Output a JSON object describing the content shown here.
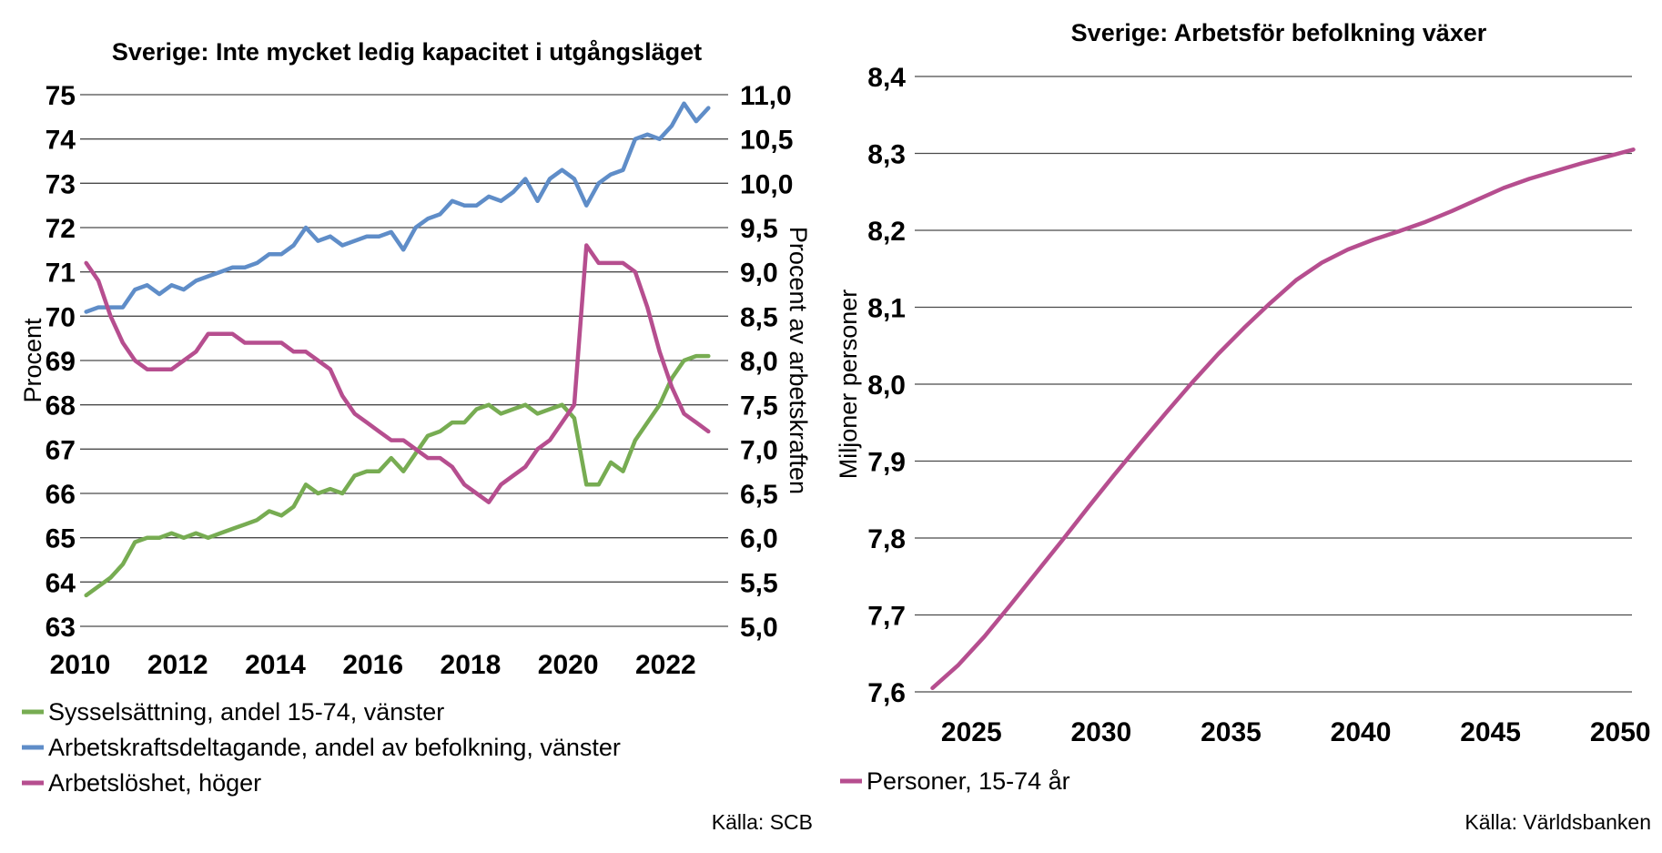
{
  "charts": [
    {
      "type": "line",
      "title": "Sverige: Inte mycket ledig kapacitet i utgångsläget",
      "ylabel": "Procent",
      "y2label": "Procent av arbetskraften",
      "xlabel": "",
      "xlim": [
        2010,
        2023
      ],
      "ylim": [
        63,
        75
      ],
      "y2lim": [
        5.0,
        11.0
      ],
      "x_ticks": [
        "2010",
        "2012",
        "2014",
        "2016",
        "2018",
        "2020",
        "2022"
      ],
      "y_ticks": [
        "63",
        "64",
        "65",
        "66",
        "67",
        "68",
        "69",
        "70",
        "71",
        "72",
        "73",
        "74",
        "75"
      ],
      "y2_ticks": [
        "5,0",
        "5,5",
        "6,0",
        "6,5",
        "7,0",
        "7,5",
        "8,0",
        "8,5",
        "9,0",
        "9,5",
        "10,0",
        "10,5",
        "11,0"
      ],
      "grid": true,
      "legend_position": "bottom",
      "source": "Källa: SCB",
      "series": [
        {
          "name": "Sysselsättning, andel 15-74, vänster",
          "axis": "left",
          "color": "#77AC52",
          "x": [
            2010.125,
            2010.375,
            2010.625,
            2010.875,
            2011.125,
            2011.375,
            2011.625,
            2011.875,
            2012.125,
            2012.375,
            2012.625,
            2012.875,
            2013.125,
            2013.375,
            2013.625,
            2013.875,
            2014.125,
            2014.375,
            2014.625,
            2014.875,
            2015.125,
            2015.375,
            2015.625,
            2015.875,
            2016.125,
            2016.375,
            2016.625,
            2016.875,
            2017.125,
            2017.375,
            2017.625,
            2017.875,
            2018.125,
            2018.375,
            2018.625,
            2018.875,
            2019.125,
            2019.375,
            2019.625,
            2019.875,
            2020.125,
            2020.375,
            2020.625,
            2020.875,
            2021.125,
            2021.375,
            2021.625,
            2021.875,
            2022.125,
            2022.375,
            2022.625,
            2022.875
          ],
          "values": [
            63.7,
            63.9,
            64.1,
            64.4,
            64.9,
            65.0,
            65.0,
            65.1,
            65.0,
            65.1,
            65.0,
            65.1,
            65.2,
            65.3,
            65.4,
            65.6,
            65.5,
            65.7,
            66.2,
            66.0,
            66.1,
            66.0,
            66.4,
            66.5,
            66.5,
            66.8,
            66.5,
            66.9,
            67.3,
            67.4,
            67.6,
            67.6,
            67.9,
            68.0,
            67.8,
            67.9,
            68.0,
            67.8,
            67.9,
            68.0,
            67.7,
            66.2,
            66.2,
            66.7,
            66.5,
            67.2,
            67.6,
            68.0,
            68.6,
            69.0,
            69.1,
            69.1
          ]
        },
        {
          "name": "Arbetskraftsdeltagande, andel av befolkning, vänster",
          "axis": "left",
          "color": "#5F8DC8",
          "x": [
            2010.125,
            2010.375,
            2010.625,
            2010.875,
            2011.125,
            2011.375,
            2011.625,
            2011.875,
            2012.125,
            2012.375,
            2012.625,
            2012.875,
            2013.125,
            2013.375,
            2013.625,
            2013.875,
            2014.125,
            2014.375,
            2014.625,
            2014.875,
            2015.125,
            2015.375,
            2015.625,
            2015.875,
            2016.125,
            2016.375,
            2016.625,
            2016.875,
            2017.125,
            2017.375,
            2017.625,
            2017.875,
            2018.125,
            2018.375,
            2018.625,
            2018.875,
            2019.125,
            2019.375,
            2019.625,
            2019.875,
            2020.125,
            2020.375,
            2020.625,
            2020.875,
            2021.125,
            2021.375,
            2021.625,
            2021.875,
            2022.125,
            2022.375,
            2022.625,
            2022.875
          ],
          "values": [
            70.1,
            70.2,
            70.2,
            70.2,
            70.6,
            70.7,
            70.5,
            70.7,
            70.6,
            70.8,
            70.9,
            71.0,
            71.1,
            71.1,
            71.2,
            71.4,
            71.4,
            71.6,
            72.0,
            71.7,
            71.8,
            71.6,
            71.7,
            71.8,
            71.8,
            71.9,
            71.5,
            72.0,
            72.2,
            72.3,
            72.6,
            72.5,
            72.5,
            72.7,
            72.6,
            72.8,
            73.1,
            72.6,
            73.1,
            73.3,
            73.1,
            72.5,
            73.0,
            73.2,
            73.3,
            74.0,
            74.1,
            74.0,
            74.3,
            74.8,
            74.4,
            74.7
          ]
        },
        {
          "name": "Arbetslöshet, höger",
          "axis": "right",
          "color": "#B64E8F",
          "x": [
            2010.125,
            2010.375,
            2010.625,
            2010.875,
            2011.125,
            2011.375,
            2011.625,
            2011.875,
            2012.125,
            2012.375,
            2012.625,
            2012.875,
            2013.125,
            2013.375,
            2013.625,
            2013.875,
            2014.125,
            2014.375,
            2014.625,
            2014.875,
            2015.125,
            2015.375,
            2015.625,
            2015.875,
            2016.125,
            2016.375,
            2016.625,
            2016.875,
            2017.125,
            2017.375,
            2017.625,
            2017.875,
            2018.125,
            2018.375,
            2018.625,
            2018.875,
            2019.125,
            2019.375,
            2019.625,
            2019.875,
            2020.125,
            2020.375,
            2020.625,
            2020.875,
            2021.125,
            2021.375,
            2021.625,
            2021.875,
            2022.125,
            2022.375,
            2022.625,
            2022.875
          ],
          "values": [
            9.1,
            8.9,
            8.5,
            8.2,
            8.0,
            7.9,
            7.9,
            7.9,
            8.0,
            8.1,
            8.3,
            8.3,
            8.3,
            8.2,
            8.2,
            8.2,
            8.2,
            8.1,
            8.1,
            8.0,
            7.9,
            7.6,
            7.4,
            7.3,
            7.2,
            7.1,
            7.1,
            7.0,
            6.9,
            6.9,
            6.8,
            6.6,
            6.5,
            6.4,
            6.6,
            6.7,
            6.8,
            7.0,
            7.1,
            7.3,
            7.5,
            9.3,
            9.1,
            9.1,
            9.1,
            9.0,
            8.6,
            8.1,
            7.7,
            7.4,
            7.3,
            7.2
          ]
        }
      ]
    },
    {
      "type": "line",
      "title": "Sverige: Arbetsför befolkning växer",
      "ylabel": "Miljoner personer",
      "xlabel": "",
      "xlim": [
        2022.5,
        2051.5
      ],
      "ylim": [
        7.6,
        8.4
      ],
      "x_ticks": [
        "2025",
        "2030",
        "2035",
        "2040",
        "2045",
        "2050"
      ],
      "y_ticks": [
        "7,6",
        "7,7",
        "7,8",
        "7,9",
        "8,0",
        "8,1",
        "8,2",
        "8,3",
        "8,4"
      ],
      "grid": true,
      "legend_position": "bottom",
      "source": "Källa: Världsbanken",
      "series": [
        {
          "name": "Personer, 15-74 år",
          "color": "#B64E8F",
          "x": [
            2023.5,
            2024.5,
            2025.5,
            2026.5,
            2027.5,
            2028.5,
            2029.5,
            2030.5,
            2031.5,
            2032.5,
            2033.5,
            2034.5,
            2035.5,
            2036.5,
            2037.5,
            2038.5,
            2039.5,
            2040.5,
            2041.5,
            2042.5,
            2043.5,
            2044.5,
            2045.5,
            2046.5,
            2047.5,
            2048.5,
            2049.5,
            2050.5
          ],
          "values": [
            7.605,
            7.635,
            7.672,
            7.713,
            7.755,
            7.797,
            7.84,
            7.882,
            7.923,
            7.963,
            8.002,
            8.039,
            8.073,
            8.105,
            8.135,
            8.158,
            8.175,
            8.188,
            8.199,
            8.211,
            8.225,
            8.24,
            8.255,
            8.267,
            8.277,
            8.287,
            8.296,
            8.305
          ]
        }
      ]
    }
  ]
}
